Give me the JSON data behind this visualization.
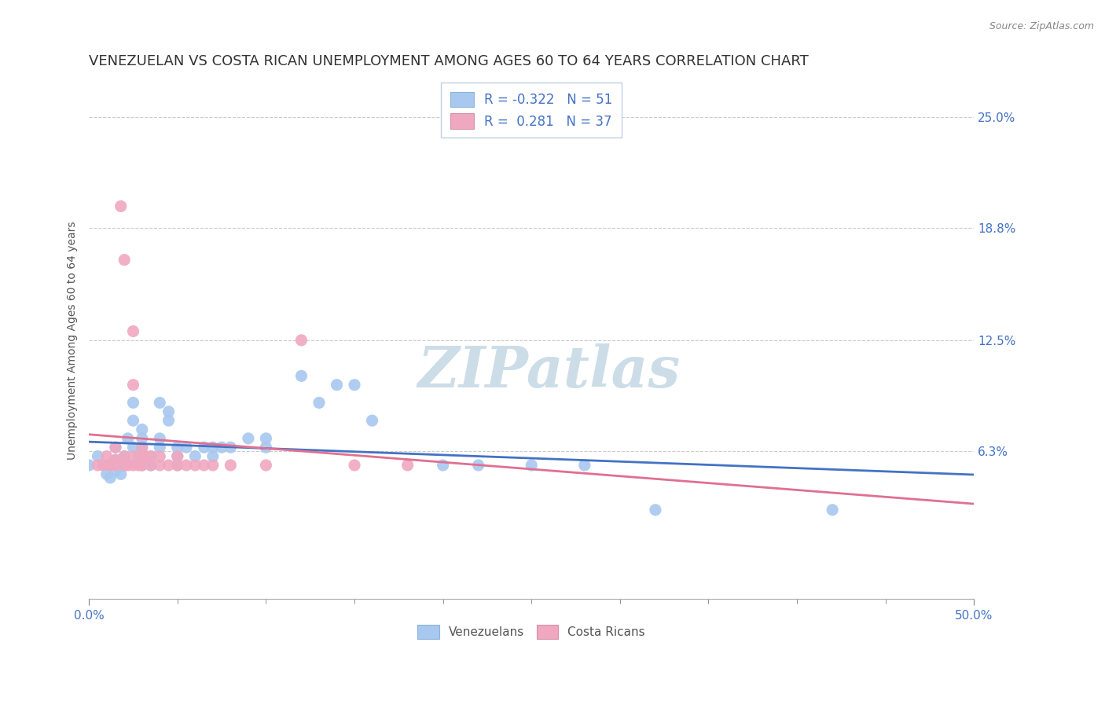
{
  "title": "VENEZUELAN VS COSTA RICAN UNEMPLOYMENT AMONG AGES 60 TO 64 YEARS CORRELATION CHART",
  "source": "Source: ZipAtlas.com",
  "ylabel_labels": [
    "25.0%",
    "18.8%",
    "12.5%",
    "6.3%"
  ],
  "ylabel_values": [
    0.25,
    0.188,
    0.125,
    0.063
  ],
  "ylabel_text": "Unemployment Among Ages 60 to 64 years",
  "xlim": [
    0.0,
    0.5
  ],
  "ylim": [
    -0.02,
    0.27
  ],
  "venezuelan_color": "#a8c8f0",
  "costarican_color": "#f0a8c0",
  "venezuelan_line_color": "#4472c4",
  "costarican_line_color": "#e07090",
  "watermark_color": "#d8e8f0",
  "background_color": "#ffffff",
  "grid_color": "#cccccc",
  "tick_label_color": "#4472c4",
  "title_color": "#333333",
  "title_fontsize": 13,
  "axis_label_fontsize": 10,
  "tick_fontsize": 11,
  "legend_R1": "-0.322",
  "legend_N1": "51",
  "legend_R2": "0.281",
  "legend_N2": "37",
  "venezuelan_points": [
    [
      0.0,
      0.055
    ],
    [
      0.005,
      0.06
    ],
    [
      0.01,
      0.05
    ],
    [
      0.01,
      0.055
    ],
    [
      0.012,
      0.048
    ],
    [
      0.015,
      0.052
    ],
    [
      0.015,
      0.058
    ],
    [
      0.015,
      0.065
    ],
    [
      0.018,
      0.05
    ],
    [
      0.02,
      0.055
    ],
    [
      0.02,
      0.06
    ],
    [
      0.022,
      0.07
    ],
    [
      0.025,
      0.065
    ],
    [
      0.025,
      0.08
    ],
    [
      0.025,
      0.09
    ],
    [
      0.028,
      0.06
    ],
    [
      0.03,
      0.055
    ],
    [
      0.03,
      0.065
    ],
    [
      0.03,
      0.07
    ],
    [
      0.03,
      0.075
    ],
    [
      0.035,
      0.055
    ],
    [
      0.035,
      0.06
    ],
    [
      0.04,
      0.065
    ],
    [
      0.04,
      0.07
    ],
    [
      0.04,
      0.09
    ],
    [
      0.045,
      0.08
    ],
    [
      0.045,
      0.085
    ],
    [
      0.05,
      0.055
    ],
    [
      0.05,
      0.06
    ],
    [
      0.05,
      0.065
    ],
    [
      0.055,
      0.065
    ],
    [
      0.06,
      0.06
    ],
    [
      0.065,
      0.065
    ],
    [
      0.07,
      0.06
    ],
    [
      0.07,
      0.065
    ],
    [
      0.075,
      0.065
    ],
    [
      0.08,
      0.065
    ],
    [
      0.09,
      0.07
    ],
    [
      0.1,
      0.065
    ],
    [
      0.1,
      0.07
    ],
    [
      0.12,
      0.105
    ],
    [
      0.13,
      0.09
    ],
    [
      0.14,
      0.1
    ],
    [
      0.15,
      0.1
    ],
    [
      0.16,
      0.08
    ],
    [
      0.2,
      0.055
    ],
    [
      0.22,
      0.055
    ],
    [
      0.25,
      0.055
    ],
    [
      0.28,
      0.055
    ],
    [
      0.32,
      0.03
    ],
    [
      0.42,
      0.03
    ]
  ],
  "costarican_points": [
    [
      0.005,
      0.055
    ],
    [
      0.008,
      0.055
    ],
    [
      0.01,
      0.06
    ],
    [
      0.012,
      0.055
    ],
    [
      0.015,
      0.055
    ],
    [
      0.015,
      0.058
    ],
    [
      0.015,
      0.065
    ],
    [
      0.018,
      0.2
    ],
    [
      0.02,
      0.17
    ],
    [
      0.02,
      0.055
    ],
    [
      0.02,
      0.06
    ],
    [
      0.022,
      0.055
    ],
    [
      0.025,
      0.055
    ],
    [
      0.025,
      0.06
    ],
    [
      0.025,
      0.1
    ],
    [
      0.025,
      0.13
    ],
    [
      0.028,
      0.055
    ],
    [
      0.03,
      0.055
    ],
    [
      0.03,
      0.06
    ],
    [
      0.03,
      0.065
    ],
    [
      0.032,
      0.06
    ],
    [
      0.035,
      0.055
    ],
    [
      0.035,
      0.06
    ],
    [
      0.04,
      0.055
    ],
    [
      0.04,
      0.06
    ],
    [
      0.045,
      0.055
    ],
    [
      0.05,
      0.055
    ],
    [
      0.05,
      0.06
    ],
    [
      0.055,
      0.055
    ],
    [
      0.06,
      0.055
    ],
    [
      0.065,
      0.055
    ],
    [
      0.07,
      0.055
    ],
    [
      0.08,
      0.055
    ],
    [
      0.1,
      0.055
    ],
    [
      0.12,
      0.125
    ],
    [
      0.15,
      0.055
    ],
    [
      0.18,
      0.055
    ]
  ]
}
